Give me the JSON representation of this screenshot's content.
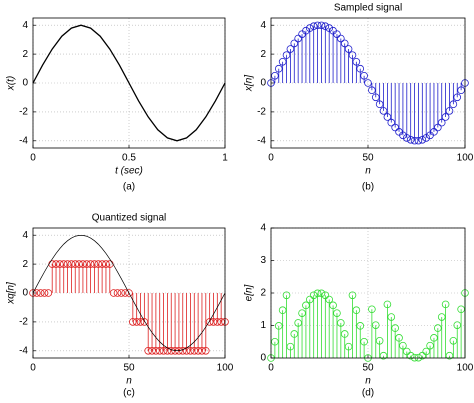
{
  "chart_data": [
    {
      "type": "line",
      "caption": "(a)",
      "xlabel": "t (sec)",
      "ylabel": "x(t)",
      "xlim": [
        0,
        1
      ],
      "xticks": [
        0,
        0.5,
        1
      ],
      "ylim": [
        -4.5,
        4.5
      ],
      "yticks": [
        -4,
        -2,
        0,
        2,
        4
      ],
      "grid": true,
      "x": [
        0,
        0.05,
        0.1,
        0.15,
        0.2,
        0.25,
        0.3,
        0.35,
        0.4,
        0.45,
        0.5,
        0.55,
        0.6,
        0.65,
        0.7,
        0.75,
        0.8,
        0.85,
        0.9,
        0.95,
        1
      ],
      "series": [
        {
          "type": "line",
          "color": "#000000",
          "values": [
            0,
            1.24,
            2.35,
            3.24,
            3.8,
            4,
            3.8,
            3.24,
            2.35,
            1.24,
            0,
            -1.24,
            -2.35,
            -3.24,
            -3.8,
            -4,
            -3.8,
            -3.24,
            -2.35,
            -1.24,
            0
          ]
        }
      ]
    },
    {
      "type": "stem",
      "title": "Sampled signal",
      "caption": "(b)",
      "xlabel": "n",
      "ylabel": "x[n]",
      "xlim": [
        0,
        100
      ],
      "xticks": [
        0,
        50,
        100
      ],
      "ylim": [
        -4.5,
        4.5
      ],
      "yticks": [
        -4,
        -2,
        0,
        2,
        4
      ],
      "grid": true,
      "x": [
        0,
        2,
        4,
        6,
        8,
        10,
        12,
        14,
        16,
        18,
        20,
        22,
        24,
        26,
        28,
        30,
        32,
        34,
        36,
        38,
        40,
        42,
        44,
        46,
        48,
        50,
        52,
        54,
        56,
        58,
        60,
        62,
        64,
        66,
        68,
        70,
        72,
        74,
        76,
        78,
        80,
        82,
        84,
        86,
        88,
        90,
        92,
        94,
        96,
        98,
        100
      ],
      "series": [
        {
          "type": "stem",
          "color": "#1f1fcc",
          "values": [
            0,
            0.5,
            0.99,
            1.47,
            1.93,
            2.35,
            2.74,
            3.08,
            3.38,
            3.62,
            3.8,
            3.93,
            3.99,
            3.99,
            3.93,
            3.8,
            3.62,
            3.38,
            3.08,
            2.74,
            2.35,
            1.93,
            1.47,
            0.99,
            0.5,
            0,
            -0.5,
            -0.99,
            -1.47,
            -1.93,
            -2.35,
            -2.74,
            -3.08,
            -3.38,
            -3.62,
            -3.8,
            -3.93,
            -3.99,
            -3.99,
            -3.93,
            -3.8,
            -3.62,
            -3.38,
            -3.08,
            -2.74,
            -2.35,
            -1.93,
            -1.47,
            -0.99,
            -0.5,
            0
          ]
        }
      ]
    },
    {
      "type": "stem",
      "title": "Quantized signal",
      "caption": "(c)",
      "xlabel": "n",
      "ylabel": "xq[n]",
      "xlim": [
        0,
        100
      ],
      "xticks": [
        0,
        50,
        100
      ],
      "ylim": [
        -4.5,
        4.5
      ],
      "yticks": [
        -4,
        -2,
        0,
        2,
        4
      ],
      "grid": true,
      "x": [
        0,
        2,
        4,
        6,
        8,
        10,
        12,
        14,
        16,
        18,
        20,
        22,
        24,
        26,
        28,
        30,
        32,
        34,
        36,
        38,
        40,
        42,
        44,
        46,
        48,
        50,
        52,
        54,
        56,
        58,
        60,
        62,
        64,
        66,
        68,
        70,
        72,
        74,
        76,
        78,
        80,
        82,
        84,
        86,
        88,
        90,
        92,
        94,
        96,
        98,
        100
      ],
      "series": [
        {
          "type": "stem",
          "color": "#dd2020",
          "values": [
            0,
            0,
            0,
            0,
            0,
            2,
            2,
            2,
            2,
            2,
            2,
            2,
            2,
            2,
            2,
            2,
            2,
            2,
            2,
            2,
            2,
            0,
            0,
            0,
            0,
            0,
            -2,
            -2,
            -2,
            -2,
            -4,
            -4,
            -4,
            -4,
            -4,
            -4,
            -4,
            -4,
            -4,
            -4,
            -4,
            -4,
            -4,
            -4,
            -4,
            -4,
            -2,
            -2,
            -2,
            -2,
            -2
          ]
        },
        {
          "type": "line",
          "color": "#000000",
          "values": [
            0,
            0.5,
            0.99,
            1.47,
            1.93,
            2.35,
            2.74,
            3.08,
            3.38,
            3.62,
            3.8,
            3.93,
            3.99,
            3.99,
            3.93,
            3.8,
            3.62,
            3.38,
            3.08,
            2.74,
            2.35,
            1.93,
            1.47,
            0.99,
            0.5,
            0,
            -0.5,
            -0.99,
            -1.47,
            -1.93,
            -2.35,
            -2.74,
            -3.08,
            -3.38,
            -3.62,
            -3.8,
            -3.93,
            -3.99,
            -3.99,
            -3.93,
            -3.8,
            -3.62,
            -3.38,
            -3.08,
            -2.74,
            -2.35,
            -1.93,
            -1.47,
            -0.99,
            -0.5,
            0
          ]
        }
      ]
    },
    {
      "type": "stem",
      "caption": "(d)",
      "xlabel": "n",
      "ylabel": "e[n]",
      "xlim": [
        0,
        100
      ],
      "xticks": [
        0,
        50,
        100
      ],
      "ylim": [
        0,
        4
      ],
      "yticks": [
        0,
        1,
        2,
        3,
        4
      ],
      "grid": true,
      "x": [
        0,
        2,
        4,
        6,
        8,
        10,
        12,
        14,
        16,
        18,
        20,
        22,
        24,
        26,
        28,
        30,
        32,
        34,
        36,
        38,
        40,
        42,
        44,
        46,
        48,
        50,
        52,
        54,
        56,
        58,
        60,
        62,
        64,
        66,
        68,
        70,
        72,
        74,
        76,
        78,
        80,
        82,
        84,
        86,
        88,
        90,
        92,
        94,
        96,
        98,
        100
      ],
      "series": [
        {
          "type": "stem",
          "color": "#33dd33",
          "values": [
            0,
            0.5,
            0.99,
            1.47,
            1.93,
            0.35,
            0.74,
            1.08,
            1.38,
            1.62,
            1.8,
            1.93,
            1.99,
            1.99,
            1.93,
            1.8,
            1.62,
            1.38,
            1.08,
            0.74,
            0.35,
            1.93,
            1.47,
            0.99,
            0.5,
            0,
            1.5,
            1.01,
            0.53,
            0.07,
            1.65,
            1.26,
            0.92,
            0.62,
            0.38,
            0.2,
            0.07,
            0.01,
            0.01,
            0.07,
            0.2,
            0.38,
            0.62,
            0.92,
            1.26,
            1.65,
            0.07,
            0.53,
            1.01,
            1.5,
            2
          ]
        }
      ]
    }
  ]
}
